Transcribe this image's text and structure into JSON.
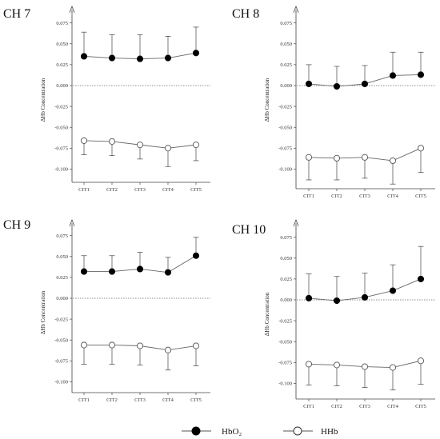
{
  "legend": {
    "hbo2_label": "HbO₂",
    "hhb_label": "HHb"
  },
  "chart_data": [
    {
      "type": "line",
      "title": "CH 7",
      "ylabel": "ΔHb Concentration",
      "xlabel": "",
      "categories": [
        "CIT1",
        "CIT2",
        "CIT3",
        "CIT4",
        "CIT5"
      ],
      "yticks": [
        "0.075",
        "0.050",
        "0.025",
        "0.000",
        "-0.025",
        "-0.050",
        "-0.075",
        "-0.100"
      ],
      "ylim": [
        -0.12,
        0.085
      ],
      "reference_line": 0,
      "series": [
        {
          "name": "HbO₂",
          "marker": "filled-circle",
          "values": [
            0.035,
            0.033,
            0.032,
            0.033,
            0.039
          ],
          "error_up": [
            0.029,
            0.028,
            0.029,
            0.026,
            0.031
          ]
        },
        {
          "name": "HHb",
          "marker": "open-circle",
          "values": [
            -0.066,
            -0.067,
            -0.071,
            -0.075,
            -0.071
          ],
          "error_down": [
            0.017,
            0.017,
            0.017,
            0.022,
            0.019
          ]
        }
      ]
    },
    {
      "type": "line",
      "title": "CH 8",
      "ylabel": "ΔHb Concentration",
      "xlabel": "",
      "categories": [
        "CIT1",
        "CIT2",
        "CIT3",
        "CIT4",
        "CIT5"
      ],
      "yticks": [
        "0.075",
        "0.050",
        "0.025",
        "0.000",
        "-0.025",
        "-0.050",
        "-0.075",
        "-0.100"
      ],
      "ylim": [
        -0.12,
        0.085
      ],
      "reference_line": 0,
      "series": [
        {
          "name": "HbO₂",
          "marker": "filled-circle",
          "values": [
            0.002,
            -0.001,
            0.002,
            0.012,
            0.013
          ],
          "error_up": [
            0.023,
            0.024,
            0.022,
            0.028,
            0.027
          ]
        },
        {
          "name": "HHb",
          "marker": "open-circle",
          "values": [
            -0.086,
            -0.087,
            -0.086,
            -0.09,
            -0.075
          ],
          "error_down": [
            0.027,
            0.026,
            0.025,
            0.028,
            0.029
          ]
        }
      ]
    },
    {
      "type": "line",
      "title": "CH 9",
      "ylabel": "ΔHb Concentration",
      "xlabel": "",
      "categories": [
        "CIT1",
        "CIT2",
        "CIT3",
        "CIT4",
        "CIT5"
      ],
      "yticks": [
        "0.075",
        "0.050",
        "0.025",
        "0.000",
        "-0.025",
        "-0.050",
        "-0.075",
        "-0.100"
      ],
      "ylim": [
        -0.12,
        0.085
      ],
      "reference_line": 0,
      "series": [
        {
          "name": "HbO₂",
          "marker": "filled-circle",
          "values": [
            0.032,
            0.032,
            0.035,
            0.031,
            0.051
          ],
          "error_up": [
            0.019,
            0.019,
            0.02,
            0.018,
            0.022
          ]
        },
        {
          "name": "HHb",
          "marker": "open-circle",
          "values": [
            -0.056,
            -0.056,
            -0.057,
            -0.062,
            -0.057
          ],
          "error_down": [
            0.023,
            0.023,
            0.023,
            0.024,
            0.024
          ]
        }
      ]
    },
    {
      "type": "line",
      "title": "CH 10",
      "ylabel": "ΔHb Concentration",
      "xlabel": "",
      "categories": [
        "CIT1",
        "CIT2",
        "CIT3",
        "CIT4",
        "CIT5"
      ],
      "yticks": [
        "0.075",
        "0.050",
        "0.025",
        "0.000",
        "-0.025",
        "-0.050",
        "-0.075",
        "-0.100"
      ],
      "ylim": [
        -0.12,
        0.085
      ],
      "reference_line": 0,
      "series": [
        {
          "name": "HbO₂",
          "marker": "filled-circle",
          "values": [
            0.002,
            -0.001,
            0.003,
            0.011,
            0.025
          ],
          "error_up": [
            0.029,
            0.029,
            0.029,
            0.031,
            0.039
          ]
        },
        {
          "name": "HHb",
          "marker": "open-circle",
          "values": [
            -0.077,
            -0.078,
            -0.08,
            -0.081,
            -0.073
          ],
          "error_down": [
            0.025,
            0.025,
            0.025,
            0.027,
            0.028
          ]
        }
      ]
    }
  ]
}
